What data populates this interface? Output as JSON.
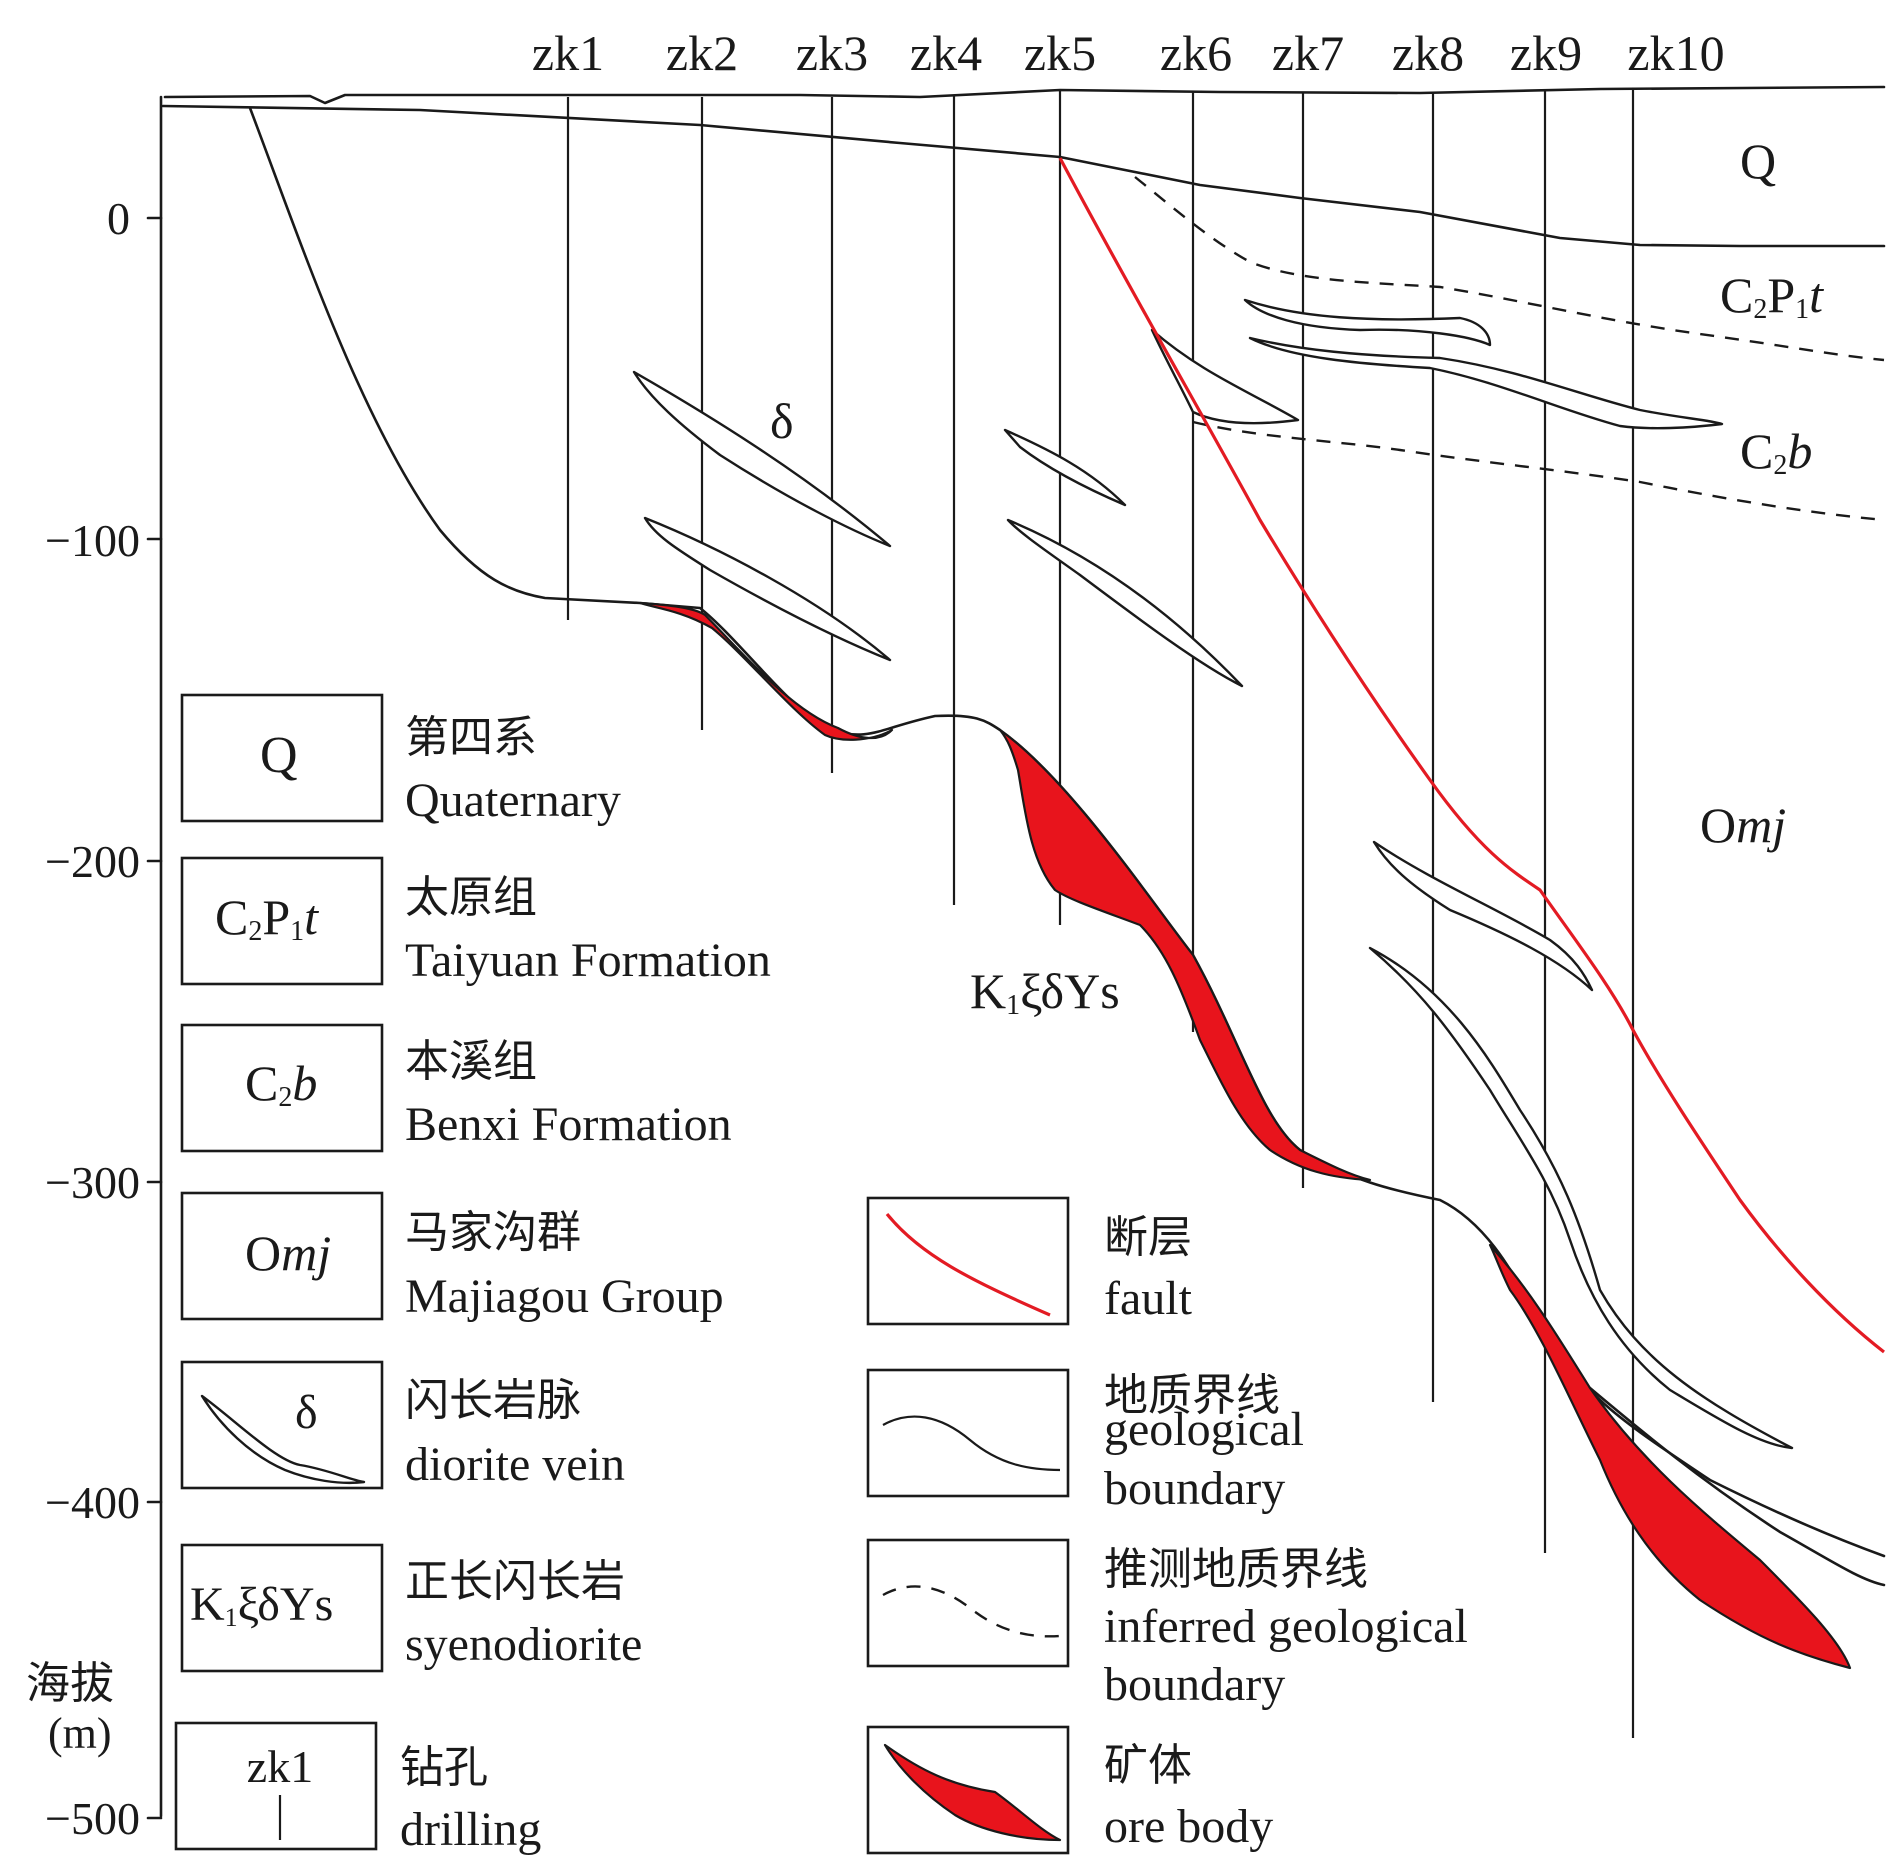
{
  "colors": {
    "ore": "#e8141c",
    "fault": "#e31b23",
    "line": "#1a1a1a",
    "background": "#ffffff"
  },
  "boreholes": [
    "zk1",
    "zk2",
    "zk3",
    "zk4",
    "zk5",
    "zk6",
    "zk7",
    "zk8",
    "zk9",
    "zk10"
  ],
  "axis": {
    "title": "海拔",
    "unit": "(m)",
    "ticks": [
      "0",
      "−100",
      "−200",
      "−300",
      "−400",
      "−500"
    ]
  },
  "units": {
    "q": "Q",
    "taiyuan": {
      "main": "C",
      "sub1": "2",
      "mid": "P",
      "sub2": "1",
      "ital": "t"
    },
    "benxi": {
      "main": "C",
      "sub": "2",
      "ital": "b"
    },
    "majiagou": {
      "main": "O",
      "ital": "mj"
    },
    "delta": "δ",
    "syeno": {
      "main": "K",
      "sub": "1",
      "rest": "ξδYs"
    }
  },
  "legend": {
    "quaternary": {
      "symbol": "Q",
      "zh": "第四系",
      "en": "Quaternary"
    },
    "taiyuan": {
      "zh": "太原组",
      "en": "Taiyuan Formation"
    },
    "benxi": {
      "zh": "本溪组",
      "en": "Benxi Formation"
    },
    "majiagou": {
      "zh": "马家沟群",
      "en": "Majiagou Group"
    },
    "diorite": {
      "symbol": "δ",
      "zh": "闪长岩脉",
      "en": "diorite vein"
    },
    "syenodiorite": {
      "zh": "正长闪长岩",
      "en": "syenodiorite"
    },
    "drilling": {
      "symbol": "zk1",
      "zh": "钻孔",
      "en": "drilling"
    },
    "fault": {
      "zh": "断层",
      "en": "fault"
    },
    "boundary": {
      "zh": "地质界线",
      "en1": "geological",
      "en2": "boundary"
    },
    "inferred": {
      "zh": "推测地质界线",
      "en1": "inferred geological",
      "en2": "boundary"
    },
    "ore": {
      "zh": "矿体",
      "en": "ore body"
    }
  }
}
